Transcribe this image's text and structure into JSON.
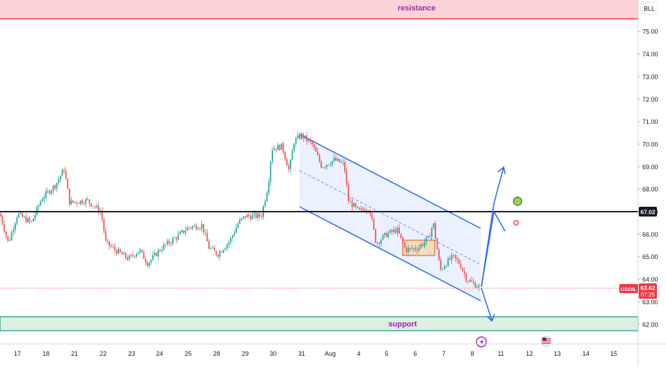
{
  "symbol": "USOIL",
  "scale_button": "BLL",
  "colors": {
    "up": "#26a69a",
    "down": "#ef5350",
    "channel": "#2962ff",
    "resistance": "#f23645",
    "support": "#089981",
    "annotation_text": "#9c27b0"
  },
  "resistance_label": "resistance",
  "support_label": "support",
  "price_tags": {
    "level_value": "67.02",
    "symbol_label": "USOIL",
    "current_price": "63.62",
    "countdown": "07:25"
  },
  "icons": {
    "event_a": "lightning-icon",
    "event_b": "us-flag-icon",
    "bull_marker": "green-circle-icon",
    "bear_marker": "red-circle-icon"
  },
  "chart_data": {
    "type": "candlestick",
    "instrument": "USOIL",
    "y_axis": {
      "range": [
        61.6,
        75.6
      ],
      "ticks": [
        "75.00",
        "74.00",
        "73.00",
        "72.00",
        "71.00",
        "70.00",
        "69.00",
        "68.00",
        "67.00",
        "66.00",
        "65.00",
        "64.00",
        "63.00",
        "62.00"
      ]
    },
    "x_axis": {
      "ticks": [
        "17",
        "18",
        "21",
        "22",
        "23",
        "24",
        "25",
        "28",
        "29",
        "30",
        "31",
        "Aug",
        "4",
        "5",
        "6",
        "7",
        "8",
        "11",
        "12",
        "13",
        "14",
        "15"
      ]
    },
    "levels": {
      "resistance": {
        "label": "resistance",
        "from": 75.6,
        "to": 76.2
      },
      "support": {
        "label": "support",
        "from": 61.8,
        "to": 62.4
      },
      "horizontal_line": 67.02,
      "current_price": 63.62
    },
    "channel": {
      "upper": [
        {
          "x": "31",
          "y": 70.45
        },
        {
          "x": "8",
          "y": 66.3
        }
      ],
      "mid": [
        {
          "x": "31",
          "y": 68.85
        },
        {
          "x": "8",
          "y": 64.7
        }
      ],
      "lower": [
        {
          "x": "31",
          "y": 67.25
        },
        {
          "x": "8",
          "y": 63.0
        }
      ]
    },
    "consolidation_box": {
      "from_x": "5",
      "to_x": "6",
      "low": 65.1,
      "high": 65.75
    },
    "candles_close": [
      {
        "x": "17",
        "close": 66.9
      },
      {
        "x": "18",
        "close": 67.8
      },
      {
        "x": "21",
        "close": 67.3
      },
      {
        "x": "22",
        "close": 65.3
      },
      {
        "x": "23",
        "close": 64.9
      },
      {
        "x": "24",
        "close": 65.7
      },
      {
        "x": "25",
        "close": 66.2
      },
      {
        "x": "28",
        "close": 65.2
      },
      {
        "x": "29",
        "close": 66.7
      },
      {
        "x": "30",
        "close": 70.1
      },
      {
        "x": "31",
        "close": 70.3
      },
      {
        "x": "Aug",
        "close": 69.3
      },
      {
        "x": "4",
        "close": 67.1
      },
      {
        "x": "5",
        "close": 65.6
      },
      {
        "x": "6",
        "close": 66.1
      },
      {
        "x": "7",
        "close": 64.8
      },
      {
        "x": "8",
        "close": 63.62
      }
    ],
    "projections": [
      {
        "label": "up",
        "to_x": "11",
        "to_y": 69.0
      },
      {
        "label": "down",
        "to_x": "11",
        "to_y": 62.2
      }
    ]
  }
}
